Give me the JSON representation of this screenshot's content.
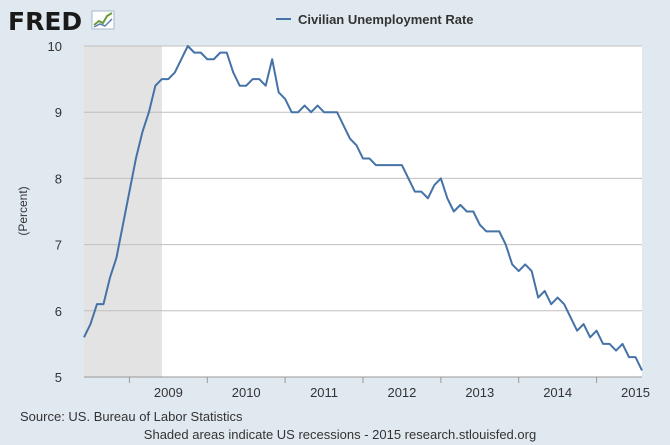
{
  "logo": {
    "text": "FRED"
  },
  "chart_data": {
    "type": "line",
    "title": "",
    "xlabel": "",
    "ylabel": "(Percent)",
    "ylim": [
      5,
      10
    ],
    "yticks": [
      5,
      6,
      7,
      8,
      9,
      10
    ],
    "xlim": [
      "2008-06",
      "2015-08"
    ],
    "xticks": [
      "2009",
      "2010",
      "2011",
      "2012",
      "2013",
      "2014",
      "2015"
    ],
    "grid": true,
    "legend_position": "top",
    "series": [
      {
        "name": "Civilian Unemployment Rate",
        "color": "#4572a7",
        "start": "2008-06",
        "frequency": "monthly",
        "values": [
          5.6,
          5.8,
          6.1,
          6.1,
          6.5,
          6.8,
          7.3,
          7.8,
          8.3,
          8.7,
          9.0,
          9.4,
          9.5,
          9.5,
          9.6,
          9.8,
          10.0,
          9.9,
          9.9,
          9.8,
          9.8,
          9.9,
          9.9,
          9.6,
          9.4,
          9.4,
          9.5,
          9.5,
          9.4,
          9.8,
          9.3,
          9.2,
          9.0,
          9.0,
          9.1,
          9.0,
          9.1,
          9.0,
          9.0,
          9.0,
          8.8,
          8.6,
          8.5,
          8.3,
          8.3,
          8.2,
          8.2,
          8.2,
          8.2,
          8.2,
          8.0,
          7.8,
          7.8,
          7.7,
          7.9,
          8.0,
          7.7,
          7.5,
          7.6,
          7.5,
          7.5,
          7.3,
          7.2,
          7.2,
          7.2,
          7.0,
          6.7,
          6.6,
          6.7,
          6.6,
          6.2,
          6.3,
          6.1,
          6.2,
          6.1,
          5.9,
          5.7,
          5.8,
          5.6,
          5.7,
          5.5,
          5.5,
          5.4,
          5.5,
          5.3,
          5.3,
          5.1
        ]
      }
    ],
    "recessions": [
      {
        "start": "2008-06",
        "end": "2009-06"
      }
    ]
  },
  "footer": {
    "source": "Source: US. Bureau of Labor Statistics",
    "note": "Shaded areas indicate US recessions - 2015 research.stlouisfed.org"
  },
  "colors": {
    "background": "#e1e9f0",
    "plot": "#ffffff",
    "recession": "#e3e3e3",
    "line": "#4572a7"
  }
}
